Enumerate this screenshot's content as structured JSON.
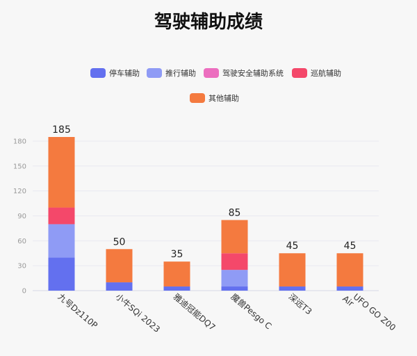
{
  "chart_data": {
    "type": "bar",
    "stacked": true,
    "title": "驾驶辅助成绩",
    "categories": [
      "九号Dz110P",
      "小牛SQi 2023",
      "雅迪冠能DQ7",
      "魔兽Pesgo C",
      "深远T3",
      "UFO GO Z00 Air"
    ],
    "series": [
      {
        "name": "停车辅助",
        "color": "#6370ef",
        "values": [
          40,
          10,
          5,
          5,
          5,
          5
        ]
      },
      {
        "name": "推行辅助",
        "color": "#8f9bf5",
        "values": [
          40,
          0,
          0,
          20,
          0,
          0
        ]
      },
      {
        "name": "驾驶安全辅助系统",
        "color": "#ec6ebf",
        "values": [
          0,
          0,
          0,
          0,
          0,
          0
        ]
      },
      {
        "name": "巡航辅助",
        "color": "#f4486a",
        "values": [
          20,
          0,
          0,
          20,
          0,
          0
        ]
      },
      {
        "name": "其他辅助",
        "color": "#f47a3f",
        "values": [
          85,
          40,
          30,
          40,
          40,
          40
        ]
      }
    ],
    "totals": [
      185,
      50,
      35,
      85,
      45,
      45
    ],
    "ylim": [
      0,
      185
    ],
    "yticks": [
      0,
      30,
      60,
      90,
      120,
      150,
      180
    ],
    "xlabel": "",
    "ylabel": "",
    "grid": true,
    "legend_position": "top"
  }
}
